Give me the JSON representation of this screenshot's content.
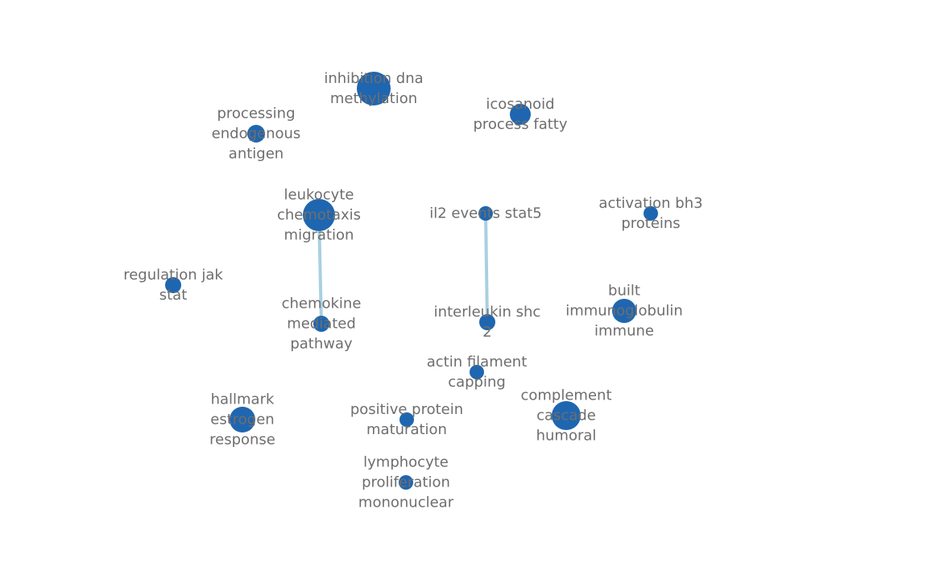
{
  "network": {
    "node_color": "#1f66b0",
    "edge_color": "#a8d0e0",
    "label_color": "#6e6e6e",
    "nodes": [
      {
        "id": "inhibition-dna-methylation",
        "lines": [
          "inhibition dna",
          "methylation"
        ]
      },
      {
        "id": "icosanoid-process-fatty",
        "lines": [
          "icosanoid",
          "process fatty"
        ]
      },
      {
        "id": "processing-endogenous-antigen",
        "lines": [
          "processing",
          "endogenous",
          "antigen"
        ]
      },
      {
        "id": "leukocyte-chemotaxis-migration",
        "lines": [
          "leukocyte",
          "chemotaxis",
          "migration"
        ]
      },
      {
        "id": "il2-events-stat5",
        "lines": [
          "il2 events stat5"
        ]
      },
      {
        "id": "activation-bh3-proteins",
        "lines": [
          "activation bh3",
          "proteins"
        ]
      },
      {
        "id": "regulation-jak-stat",
        "lines": [
          "regulation jak",
          "stat"
        ]
      },
      {
        "id": "chemokine-mediated-pathway",
        "lines": [
          "chemokine",
          "mediated",
          "pathway"
        ]
      },
      {
        "id": "interleukin-shc-2",
        "lines": [
          "interleukin shc",
          "2"
        ]
      },
      {
        "id": "built-immunoglobulin-immune",
        "lines": [
          "built",
          "immunoglobulin",
          "immune"
        ]
      },
      {
        "id": "actin-filament-capping",
        "lines": [
          "actin filament",
          "capping"
        ]
      },
      {
        "id": "hallmark-estrogen-response",
        "lines": [
          "hallmark",
          "estrogen",
          "response"
        ]
      },
      {
        "id": "positive-protein-maturation",
        "lines": [
          "positive protein",
          "maturation"
        ]
      },
      {
        "id": "complement-cascade-humoral",
        "lines": [
          "complement",
          "cascade",
          "humoral"
        ]
      },
      {
        "id": "lymphocyte-proliferation-mononuclear",
        "lines": [
          "lymphocyte",
          "proliferation",
          "mononuclear"
        ]
      }
    ],
    "edges": [
      {
        "source": "leukocyte-chemotaxis-migration",
        "target": "chemokine-mediated-pathway"
      },
      {
        "source": "il2-events-stat5",
        "target": "interleukin-shc-2"
      }
    ]
  }
}
